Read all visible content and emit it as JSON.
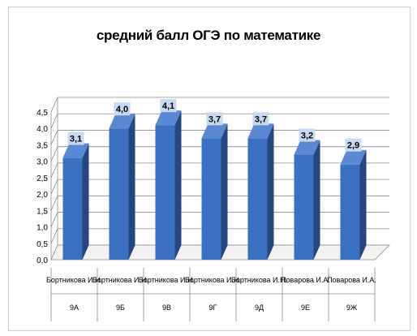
{
  "chart_data": {
    "type": "bar",
    "title": "средний балл ОГЭ по математике",
    "xlabel": "",
    "ylabel": "",
    "ylim": [
      0,
      4.5
    ],
    "yticks": [
      "0,0",
      "0,5",
      "1,0",
      "1,5",
      "2,0",
      "2,5",
      "3,0",
      "3,5",
      "4,0",
      "4,5"
    ],
    "grid": true,
    "legend": "none",
    "categories": [
      {
        "teacher": "Бортникова И.Н.",
        "class": "9А"
      },
      {
        "teacher": "Бортникова И.Н.",
        "class": "9Б"
      },
      {
        "teacher": "Бортникова И.Н.",
        "class": "9В"
      },
      {
        "teacher": "Бортникова И.Н.",
        "class": "9Г"
      },
      {
        "teacher": "Бортникова И.Н.",
        "class": "9Д"
      },
      {
        "teacher": "Поварова И.А.",
        "class": "9Е"
      },
      {
        "teacher": "Поварова И.А.",
        "class": "9Ж"
      }
    ],
    "values": [
      3.1,
      4.0,
      4.1,
      3.7,
      3.7,
      3.2,
      2.9
    ],
    "data_labels": [
      "3,1",
      "4,0",
      "4,1",
      "3,7",
      "3,7",
      "3,2",
      "2,9"
    ],
    "bar_color": "#3b6fc0",
    "bar_side_color": "#25467e",
    "bar_top_color": "#5a88d2",
    "label_bg_color": "#c6d9f1"
  }
}
